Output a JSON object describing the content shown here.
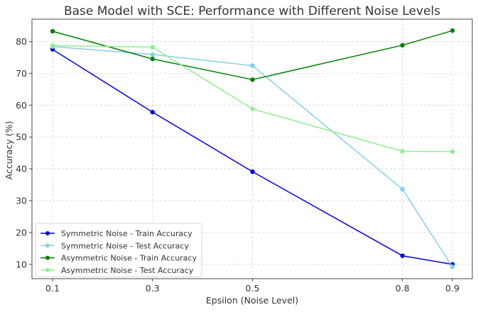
{
  "chart_data": {
    "type": "line",
    "title": "Base Model with SCE: Performance with Different Noise Levels",
    "xlabel": "Epsilon (Noise Level)",
    "ylabel": "Accuracy (%)",
    "x_categories": [
      "0.1",
      "0.3",
      "0.5",
      "0.8",
      "0.9"
    ],
    "ylim": [
      5.5,
      87
    ],
    "y_ticks": [
      10,
      20,
      30,
      40,
      50,
      60,
      70,
      80
    ],
    "grid": true,
    "legend_position": "bottom-left",
    "series": [
      {
        "name": "Symmetric Noise - Train Accuracy",
        "color": "#0000ee",
        "values": [
          77.5,
          57.8,
          39.1,
          12.7,
          10.0
        ]
      },
      {
        "name": "Symmetric Noise - Test Accuracy",
        "color": "#87ceeb",
        "values": [
          78.4,
          75.9,
          72.4,
          33.6,
          9.2
        ]
      },
      {
        "name": "Asymmetric Noise - Train Accuracy",
        "color": "#008000",
        "values": [
          83.2,
          74.5,
          68.0,
          78.8,
          83.4
        ]
      },
      {
        "name": "Asymmetric Noise - Test Accuracy",
        "color": "#90ee90",
        "values": [
          78.7,
          78.2,
          58.8,
          45.5,
          45.4
        ]
      }
    ]
  }
}
